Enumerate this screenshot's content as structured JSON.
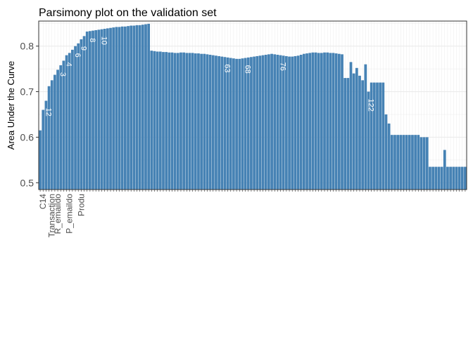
{
  "chart_data": {
    "type": "bar",
    "title": "Parsimony plot on the validation set",
    "xlabel": "",
    "ylabel": "Area Under the Curve",
    "ylim": [
      0.485,
      0.855
    ],
    "y_ticks": [
      0.5,
      0.6,
      0.7,
      0.8
    ],
    "y_tick_labels": [
      "0.5",
      "0.6",
      "0.7",
      "0.8"
    ],
    "grid": true,
    "legend": "none",
    "colors": {
      "bar": "#4682b4",
      "panel": "#ffffff",
      "grid": "#ebebeb",
      "border": "#333333"
    },
    "values": [
      0.615,
      0.66,
      0.68,
      0.712,
      0.725,
      0.737,
      0.748,
      0.758,
      0.768,
      0.78,
      0.785,
      0.792,
      0.8,
      0.806,
      0.815,
      0.822,
      0.832,
      0.833,
      0.834,
      0.835,
      0.836,
      0.837,
      0.838,
      0.839,
      0.84,
      0.841,
      0.842,
      0.842,
      0.843,
      0.843,
      0.844,
      0.845,
      0.845,
      0.846,
      0.846,
      0.847,
      0.848,
      0.849,
      0.79,
      0.789,
      0.788,
      0.788,
      0.787,
      0.787,
      0.786,
      0.786,
      0.785,
      0.785,
      0.786,
      0.786,
      0.785,
      0.785,
      0.785,
      0.784,
      0.784,
      0.783,
      0.783,
      0.782,
      0.781,
      0.78,
      0.779,
      0.778,
      0.777,
      0.776,
      0.775,
      0.774,
      0.773,
      0.772,
      0.772,
      0.773,
      0.774,
      0.775,
      0.776,
      0.777,
      0.778,
      0.779,
      0.78,
      0.781,
      0.782,
      0.783,
      0.782,
      0.781,
      0.78,
      0.779,
      0.778,
      0.777,
      0.777,
      0.778,
      0.779,
      0.781,
      0.783,
      0.784,
      0.785,
      0.786,
      0.786,
      0.785,
      0.785,
      0.786,
      0.786,
      0.785,
      0.785,
      0.784,
      0.783,
      0.782,
      0.73,
      0.73,
      0.765,
      0.74,
      0.752,
      0.735,
      0.725,
      0.76,
      0.7,
      0.72,
      0.72,
      0.72,
      0.72,
      0.72,
      0.65,
      0.63,
      0.605,
      0.605,
      0.605,
      0.605,
      0.605,
      0.605,
      0.605,
      0.605,
      0.605,
      0.605,
      0.6,
      0.6,
      0.6,
      0.535,
      0.535,
      0.535,
      0.535,
      0.535,
      0.572,
      0.535,
      0.535,
      0.535,
      0.535,
      0.535,
      0.535,
      0.535
    ],
    "bar_labels": [
      {
        "index": 2,
        "text": "12"
      },
      {
        "index": 7,
        "text": "3"
      },
      {
        "index": 9,
        "text": "4"
      },
      {
        "index": 12,
        "text": "6"
      },
      {
        "index": 14,
        "text": "9"
      },
      {
        "index": 17,
        "text": "8"
      },
      {
        "index": 21,
        "text": "10"
      },
      {
        "index": 63,
        "text": "63"
      },
      {
        "index": 70,
        "text": "68"
      },
      {
        "index": 82,
        "text": "76"
      },
      {
        "index": 112,
        "text": "122"
      }
    ],
    "x_tick_labels": [
      {
        "index": 1,
        "text": "C14"
      },
      {
        "index": 4,
        "text": "Transaction"
      },
      {
        "index": 6,
        "text": "R_emaildo"
      },
      {
        "index": 10,
        "text": "P_emaildo"
      },
      {
        "index": 14,
        "text": "Produ"
      }
    ]
  }
}
